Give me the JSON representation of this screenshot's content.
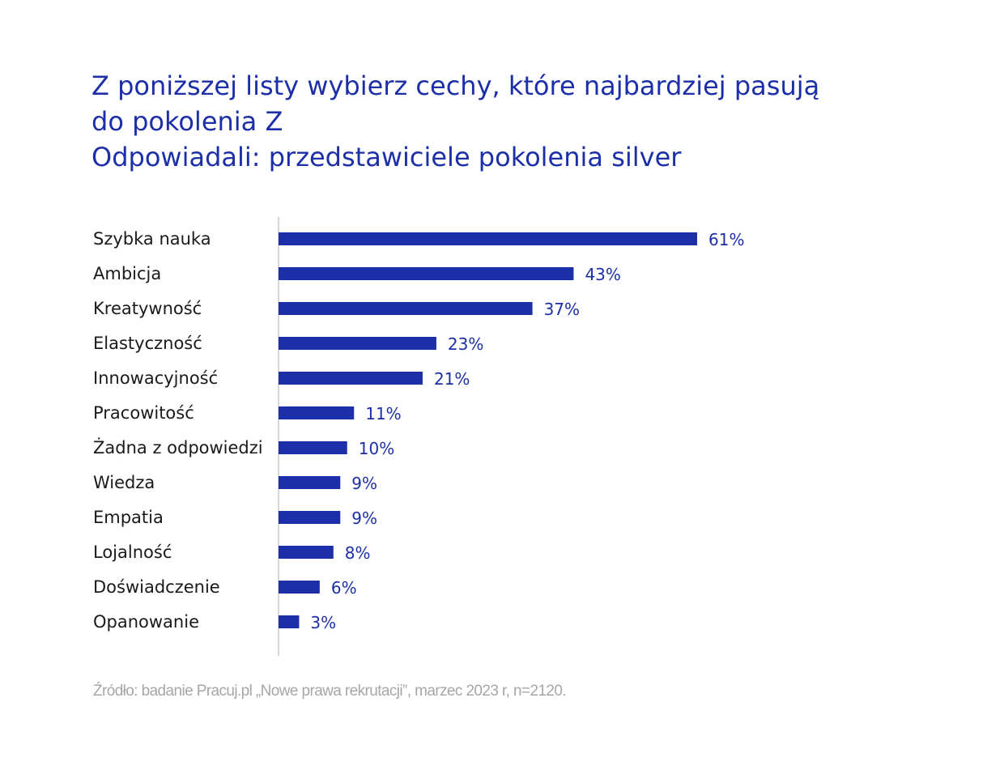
{
  "chart_data": {
    "type": "bar",
    "orientation": "horizontal",
    "title_lines": [
      "Z poniższej listy wybierz cechy, które najbardziej pasują",
      "do pokolenia Z",
      "Odpowiadali: przedstawiciele pokolenia silver"
    ],
    "categories": [
      "Szybka nauka",
      "Ambicja",
      "Kreatywność",
      "Elastyczność",
      "Innowacyjność",
      "Pracowitość",
      "Żadna z odpowiedzi",
      "Wiedza",
      "Empatia",
      "Lojalność",
      "Doświadczenie",
      "Opanowanie"
    ],
    "values": [
      61,
      43,
      37,
      23,
      21,
      11,
      10,
      9,
      9,
      8,
      6,
      3
    ],
    "value_labels": [
      "61%",
      "43%",
      "37%",
      "23%",
      "21%",
      "11%",
      "10%",
      "9%",
      "9%",
      "8%",
      "6%",
      "3%"
    ],
    "xlim": [
      0,
      100
    ],
    "grid": false,
    "legend": "none",
    "bar_color": "#1c2fa8"
  },
  "source": "Źródło: badanie Pracuj.pl „Nowe prawa rekrutacji”, marzec 2023 r, n=2120."
}
